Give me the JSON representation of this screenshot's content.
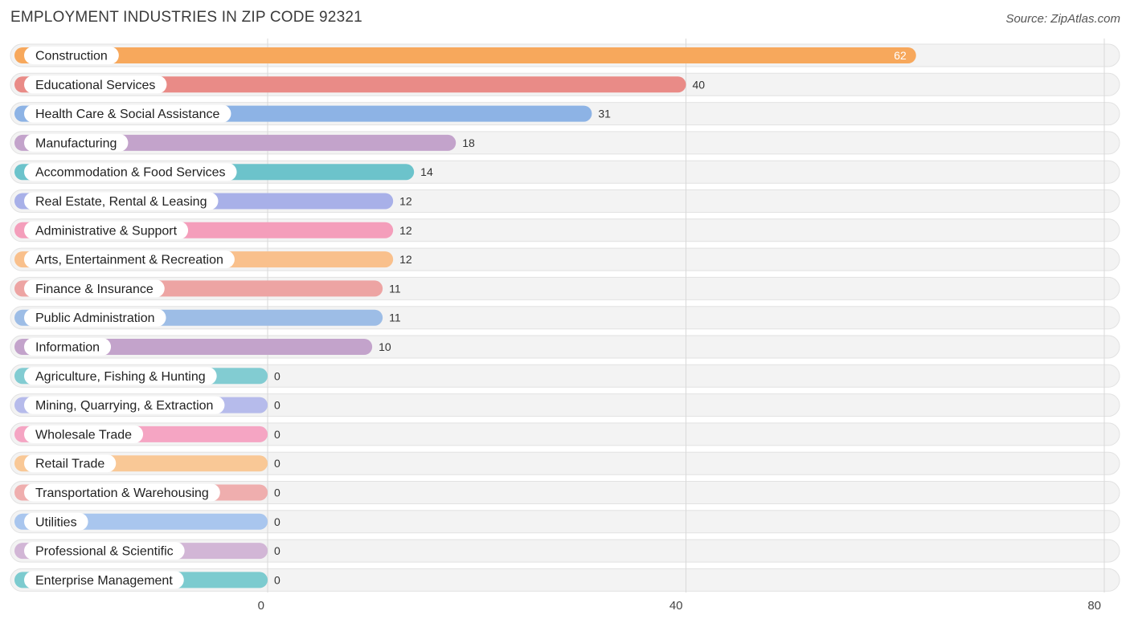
{
  "header": {
    "title": "EMPLOYMENT INDUSTRIES IN ZIP CODE 92321",
    "source": "Source: ZipAtlas.com"
  },
  "chart_data": {
    "type": "bar",
    "orientation": "horizontal",
    "title": "EMPLOYMENT INDUSTRIES IN ZIP CODE 92321",
    "xlim": [
      0,
      80
    ],
    "xticks": [
      0,
      40,
      80
    ],
    "grid": true,
    "categories": [
      "Construction",
      "Educational Services",
      "Health Care & Social Assistance",
      "Manufacturing",
      "Accommodation & Food Services",
      "Real Estate, Rental & Leasing",
      "Administrative & Support",
      "Arts, Entertainment & Recreation",
      "Finance & Insurance",
      "Public Administration",
      "Information",
      "Agriculture, Fishing & Hunting",
      "Mining, Quarrying, & Extraction",
      "Wholesale Trade",
      "Retail Trade",
      "Transportation & Warehousing",
      "Utilities",
      "Professional & Scientific",
      "Enterprise Management"
    ],
    "values": [
      62,
      40,
      31,
      18,
      14,
      12,
      12,
      12,
      11,
      11,
      10,
      0,
      0,
      0,
      0,
      0,
      0,
      0,
      0
    ],
    "colors": [
      "#f7a85c",
      "#e98b87",
      "#8db3e5",
      "#c3a3cb",
      "#6cc3cb",
      "#a8b0e8",
      "#f49ebb",
      "#f9c08c",
      "#eda4a3",
      "#9dbde6",
      "#c3a3cb",
      "#82ccd2",
      "#b6bbeb",
      "#f5a5c3",
      "#f9c896",
      "#efaeae",
      "#a9c6ee",
      "#d2b6d6",
      "#7ccbcf"
    ]
  }
}
